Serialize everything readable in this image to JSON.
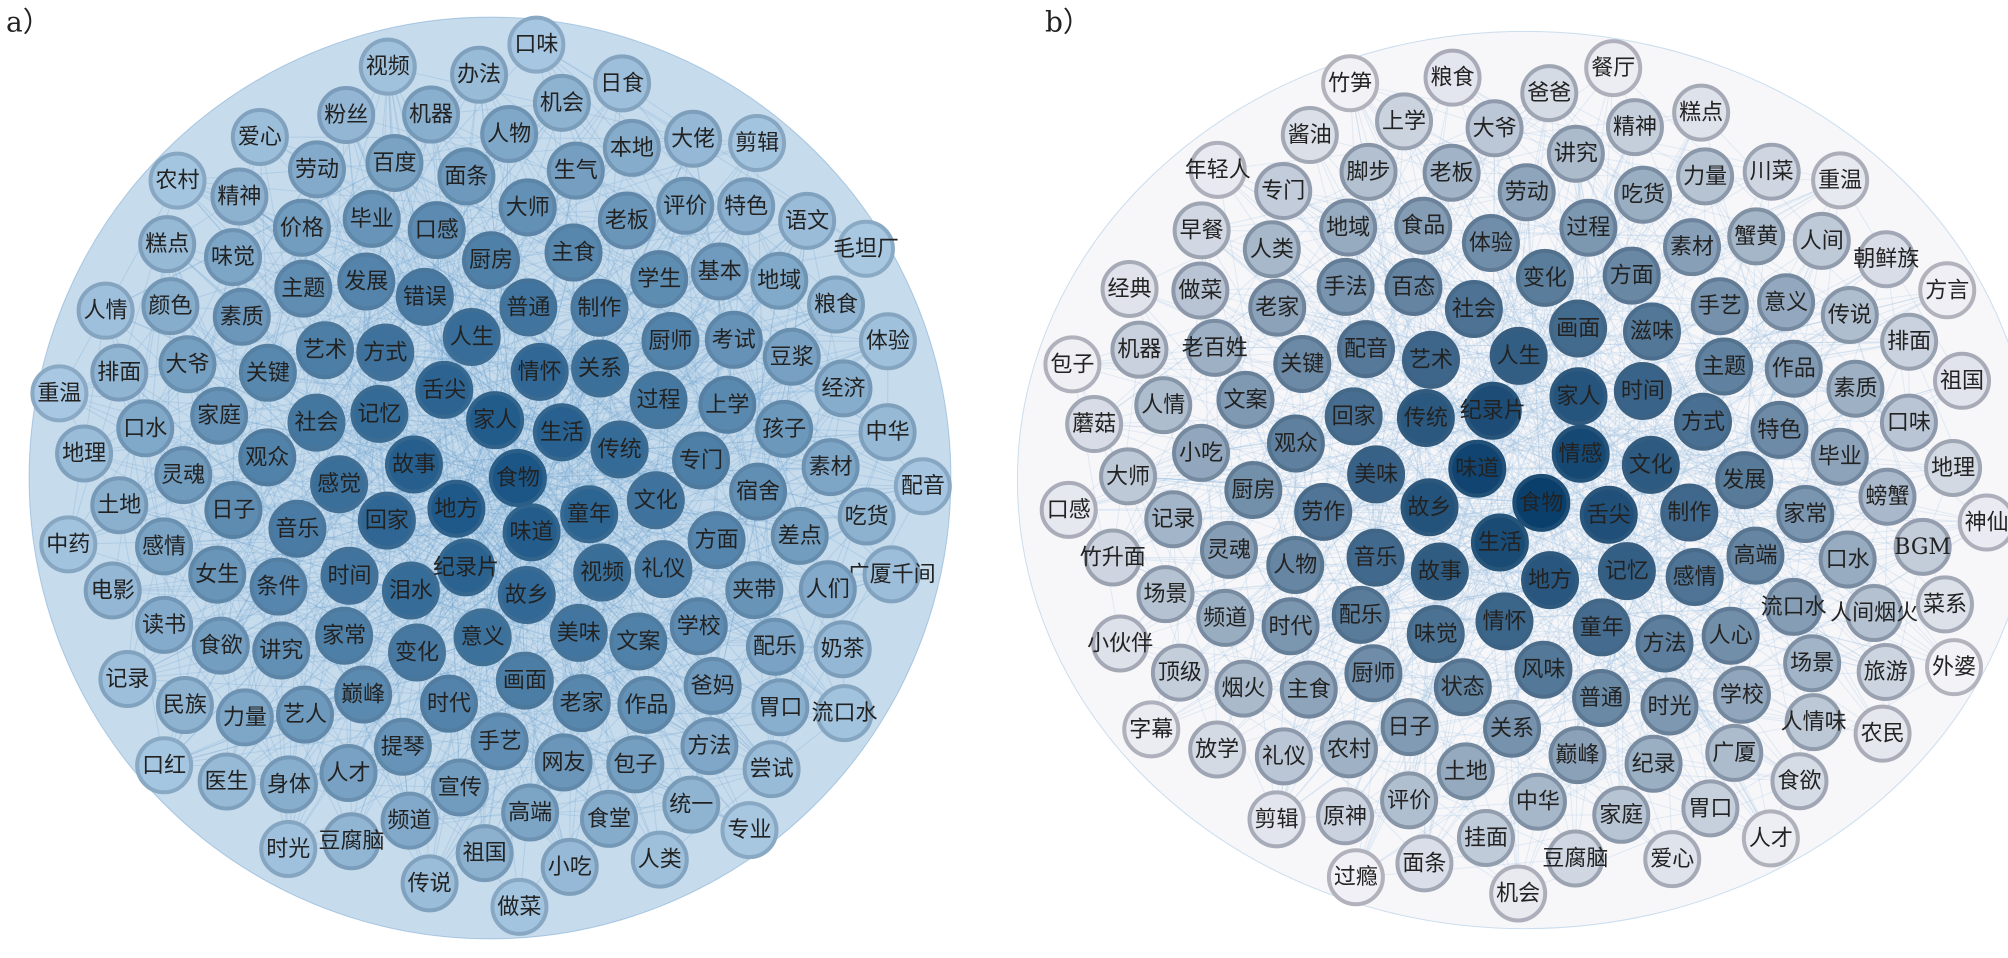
{
  "panels": [
    {
      "label": "a）",
      "nodes": [
        "食物",
        "地方",
        "家人",
        "味道",
        "故事",
        "生活",
        "纪录片",
        "舌尖",
        "童年",
        "回家",
        "情怀",
        "故乡",
        "记忆",
        "传统",
        "泪水",
        "人生",
        "视频",
        "感觉",
        "关系",
        "意义",
        "方式",
        "文化",
        "时间",
        "普通",
        "美味",
        "社会",
        "过程",
        "变化",
        "错误",
        "礼仪",
        "音乐",
        "制作",
        "画面",
        "艺术",
        "专门",
        "家常",
        "厨房",
        "文案",
        "观众",
        "厨师",
        "时代",
        "发展",
        "方面",
        "条件",
        "主食",
        "老家",
        "关键",
        "上学",
        "巅峰",
        "口感",
        "学校",
        "日子",
        "学生",
        "手艺",
        "主题",
        "宿舍",
        "讲究",
        "大师",
        "作品",
        "家庭",
        "考试",
        "提琴",
        "毕业",
        "夹带",
        "女生",
        "老板",
        "网友",
        "素质",
        "孩子",
        "艺人",
        "面条",
        "爸妈",
        "灵魂",
        "基本",
        "宣传",
        "价格",
        "差点",
        "食欲",
        "生气",
        "包子",
        "大爷",
        "豆浆",
        "人才",
        "百度",
        "配乐",
        "感情",
        "评价",
        "高端",
        "味觉",
        "素材",
        "力量",
        "人物",
        "方法",
        "口水",
        "地域",
        "频道",
        "劳动",
        "人们",
        "读书",
        "本地",
        "食堂",
        "颜色",
        "经济",
        "身体",
        "机器",
        "胃口",
        "土地",
        "特色",
        "祖国",
        "精神",
        "吃货",
        "民族",
        "机会",
        "统一",
        "排面",
        "粮食",
        "豆腐脑",
        "粉丝",
        "奶茶",
        "电影",
        "大佬",
        "小吃",
        "糕点",
        "中华",
        "医生",
        "办法",
        "尝试",
        "地理",
        "语文",
        "传说",
        "爱心",
        "广厦千间",
        "记录",
        "日食",
        "人类",
        "人情",
        "体验",
        "时光",
        "视频",
        "流口水",
        "中药",
        "剪辑",
        "做菜",
        "农村",
        "配音",
        "口红",
        "口味",
        "专业",
        "重温",
        "毛坦厂"
      ]
    },
    {
      "label": "b）",
      "nodes": [
        "食物",
        "味道",
        "情感",
        "生活",
        "纪录片",
        "舌尖",
        "故乡",
        "家人",
        "地方",
        "传统",
        "文化",
        "故事",
        "人生",
        "记忆",
        "美味",
        "时间",
        "情怀",
        "艺术",
        "制作",
        "音乐",
        "画面",
        "童年",
        "回家",
        "方式",
        "味觉",
        "社会",
        "感情",
        "劳作",
        "滋味",
        "风味",
        "配音",
        "发展",
        "配乐",
        "变化",
        "方法",
        "观众",
        "主题",
        "状态",
        "百态",
        "高端",
        "人物",
        "方面",
        "普通",
        "关键",
        "特色",
        "厨师",
        "体验",
        "人心",
        "厨房",
        "手艺",
        "关系",
        "手法",
        "家常",
        "时代",
        "过程",
        "时光",
        "文案",
        "作品",
        "日子",
        "食品",
        "流口水",
        "灵魂",
        "素材",
        "巅峰",
        "老家",
        "毕业",
        "主食",
        "劳动",
        "学校",
        "小吃",
        "意义",
        "土地",
        "地域",
        "口水",
        "频道",
        "吃货",
        "纪录",
        "老百姓",
        "素质",
        "农村",
        "老板",
        "场景",
        "记录",
        "蟹黄",
        "中华",
        "人类",
        "螃蟹",
        "烟火",
        "讲究",
        "广厦",
        "人情",
        "传说",
        "评价",
        "脚步",
        "人间烟火",
        "场景",
        "力量",
        "家庭",
        "做菜",
        "口味",
        "礼仪",
        "大爷",
        "人情味",
        "大师",
        "人间",
        "挂面",
        "专门",
        "BGM",
        "顶级",
        "精神",
        "胃口",
        "机器",
        "排面",
        "原神",
        "上学",
        "旅游",
        "竹升面",
        "川菜",
        "豆腐脑",
        "早餐",
        "地理",
        "放学",
        "爸爸",
        "食欲",
        "蘑菇",
        "朝鲜族",
        "面条",
        "酱油",
        "菜系",
        "小伙伴",
        "糕点",
        "爱心",
        "经典",
        "祖国",
        "剪辑",
        "粮食",
        "农民",
        "口感",
        "重温",
        "机会",
        "年轻人",
        "神仙",
        "字幕",
        "餐厅",
        "人才",
        "包子",
        "方言",
        "过瘾",
        "竹笋",
        "外婆"
      ]
    }
  ]
}
